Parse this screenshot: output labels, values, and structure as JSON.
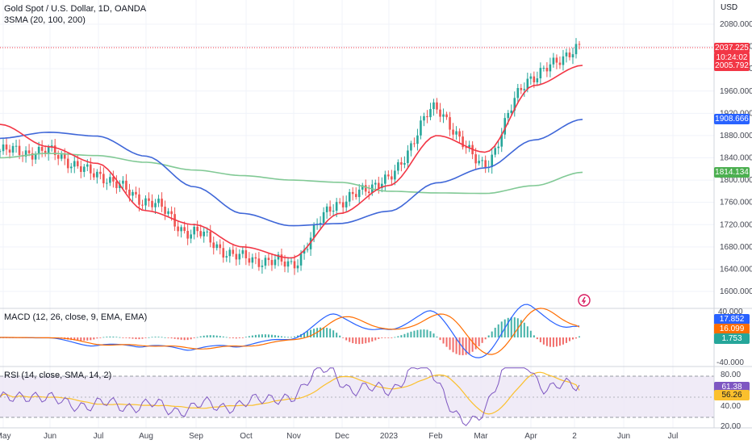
{
  "header": {
    "symbol_title": "Gold Spot / U.S. Dollar, 1D, OANDA",
    "indicator_label": "3SMA (20, 100, 200)",
    "currency": "USD"
  },
  "colors": {
    "up": "#26a69a",
    "down": "#ef5350",
    "sma20": "#f23645",
    "sma100": "#3f67d8",
    "sma200": "#81c995",
    "macd_line": "#2962ff",
    "signal_line": "#ff6d00",
    "rsi_line": "#7e57c2",
    "rsi_ma": "#fbc02d",
    "rsi_band": "#ede7f6"
  },
  "price_axis": {
    "ticks": [
      "2080.000",
      "2040.000",
      "2000.000",
      "1960.000",
      "1920.000",
      "1880.000",
      "1840.000",
      "1800.000",
      "1760.000",
      "1720.000",
      "1680.000",
      "1640.000",
      "1600.000"
    ]
  },
  "badges": {
    "price": "2037.225",
    "countdown": "10:24:02",
    "sma20": "2005.792",
    "sma100": "1908.666",
    "sma200": "1814.134"
  },
  "macd": {
    "label": "MACD (12, 26, close, 9, EMA, EMA)",
    "ticks": [
      "40.000",
      "-40.000"
    ],
    "badges": [
      "17.852",
      "16.099",
      "1.753"
    ]
  },
  "rsi": {
    "label": "RSI (14, close, SMA, 14, 2)",
    "ticks": [
      "80.00",
      "40.00",
      "20.00"
    ],
    "badges": [
      "61.38",
      "56.26"
    ]
  },
  "time_axis": [
    "May",
    "Jun",
    "Jul",
    "Aug",
    "Sep",
    "Oct",
    "Nov",
    "Dec",
    "2023",
    "Feb",
    "Mar",
    "Apr",
    "2",
    "Jun",
    "Jul"
  ],
  "chart_data": {
    "type": "line",
    "title": "Gold Spot / U.S. Dollar, 1D, OANDA",
    "ylabel": "USD",
    "ylim": [
      1580,
      2095
    ],
    "x": [
      "May",
      "Jun",
      "Jul",
      "Aug",
      "Sep",
      "Oct",
      "Nov",
      "Dec",
      "2023",
      "Feb",
      "Mar",
      "Apr",
      "2"
    ],
    "series": [
      {
        "name": "close",
        "values": [
          1852,
          1850,
          1810,
          1765,
          1705,
          1660,
          1650,
          1760,
          1800,
          1925,
          1830,
          1985,
          2037
        ]
      },
      {
        "name": "SMA 20",
        "values": [
          1900,
          1860,
          1830,
          1745,
          1720,
          1680,
          1660,
          1740,
          1790,
          1880,
          1850,
          1970,
          2006
        ]
      },
      {
        "name": "SMA 100",
        "values": [
          1875,
          1886,
          1879,
          1843,
          1788,
          1740,
          1718,
          1722,
          1744,
          1795,
          1822,
          1872,
          1909
        ]
      },
      {
        "name": "SMA 200",
        "values": [
          1840,
          1848,
          1844,
          1832,
          1818,
          1808,
          1800,
          1796,
          1780,
          1777,
          1776,
          1790,
          1814
        ]
      }
    ],
    "macd": {
      "macd": 17.852,
      "signal": 16.099,
      "histogram": 1.753,
      "ylim": [
        -40,
        40
      ]
    },
    "rsi": {
      "rsi": 61.38,
      "rsi_ma": 56.26,
      "upper": 70,
      "lower": 30
    }
  }
}
